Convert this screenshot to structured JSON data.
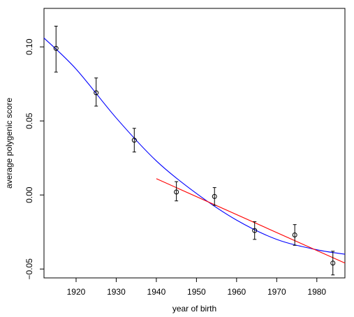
{
  "chart_data": {
    "type": "scatter",
    "title": "",
    "xlabel": "year of birth",
    "ylabel": "average polygenic score",
    "xlim": [
      1912,
      1987
    ],
    "ylim": [
      -0.056,
      0.126
    ],
    "x_ticks": [
      1920,
      1930,
      1940,
      1950,
      1960,
      1970,
      1980
    ],
    "x_tick_labels": [
      "1920",
      "1930",
      "1940",
      "1950",
      "1960",
      "1970",
      "1980"
    ],
    "y_ticks": [
      0.1,
      0.05,
      0.0,
      -0.05
    ],
    "y_tick_labels": [
      "0.10",
      "0.05",
      "0.00",
      "−0.05"
    ],
    "grid": false,
    "legend": "none",
    "points": [
      {
        "x": 1915,
        "y": 0.099,
        "lo": 0.083,
        "hi": 0.114
      },
      {
        "x": 1925,
        "y": 0.069,
        "lo": 0.06,
        "hi": 0.079
      },
      {
        "x": 1934.5,
        "y": 0.037,
        "lo": 0.029,
        "hi": 0.045
      },
      {
        "x": 1945,
        "y": 0.002,
        "lo": -0.004,
        "hi": 0.009
      },
      {
        "x": 1954.5,
        "y": -0.001,
        "lo": -0.007,
        "hi": 0.005
      },
      {
        "x": 1964.5,
        "y": -0.024,
        "lo": -0.03,
        "hi": -0.018
      },
      {
        "x": 1974.5,
        "y": -0.027,
        "lo": -0.034,
        "hi": -0.02
      },
      {
        "x": 1984,
        "y": -0.046,
        "lo": -0.054,
        "hi": -0.038
      }
    ],
    "series": [
      {
        "type": "curve",
        "color": "#0000ff",
        "x": [
          1912,
          1920,
          1930,
          1940,
          1950,
          1960,
          1970,
          1980,
          1987
        ],
        "y": [
          0.106,
          0.085,
          0.052,
          0.023,
          0.001,
          -0.017,
          -0.03,
          -0.037,
          -0.04
        ]
      },
      {
        "type": "line",
        "color": "#ff0000",
        "x": [
          1940,
          1987
        ],
        "y": [
          0.011,
          -0.046
        ]
      }
    ]
  }
}
